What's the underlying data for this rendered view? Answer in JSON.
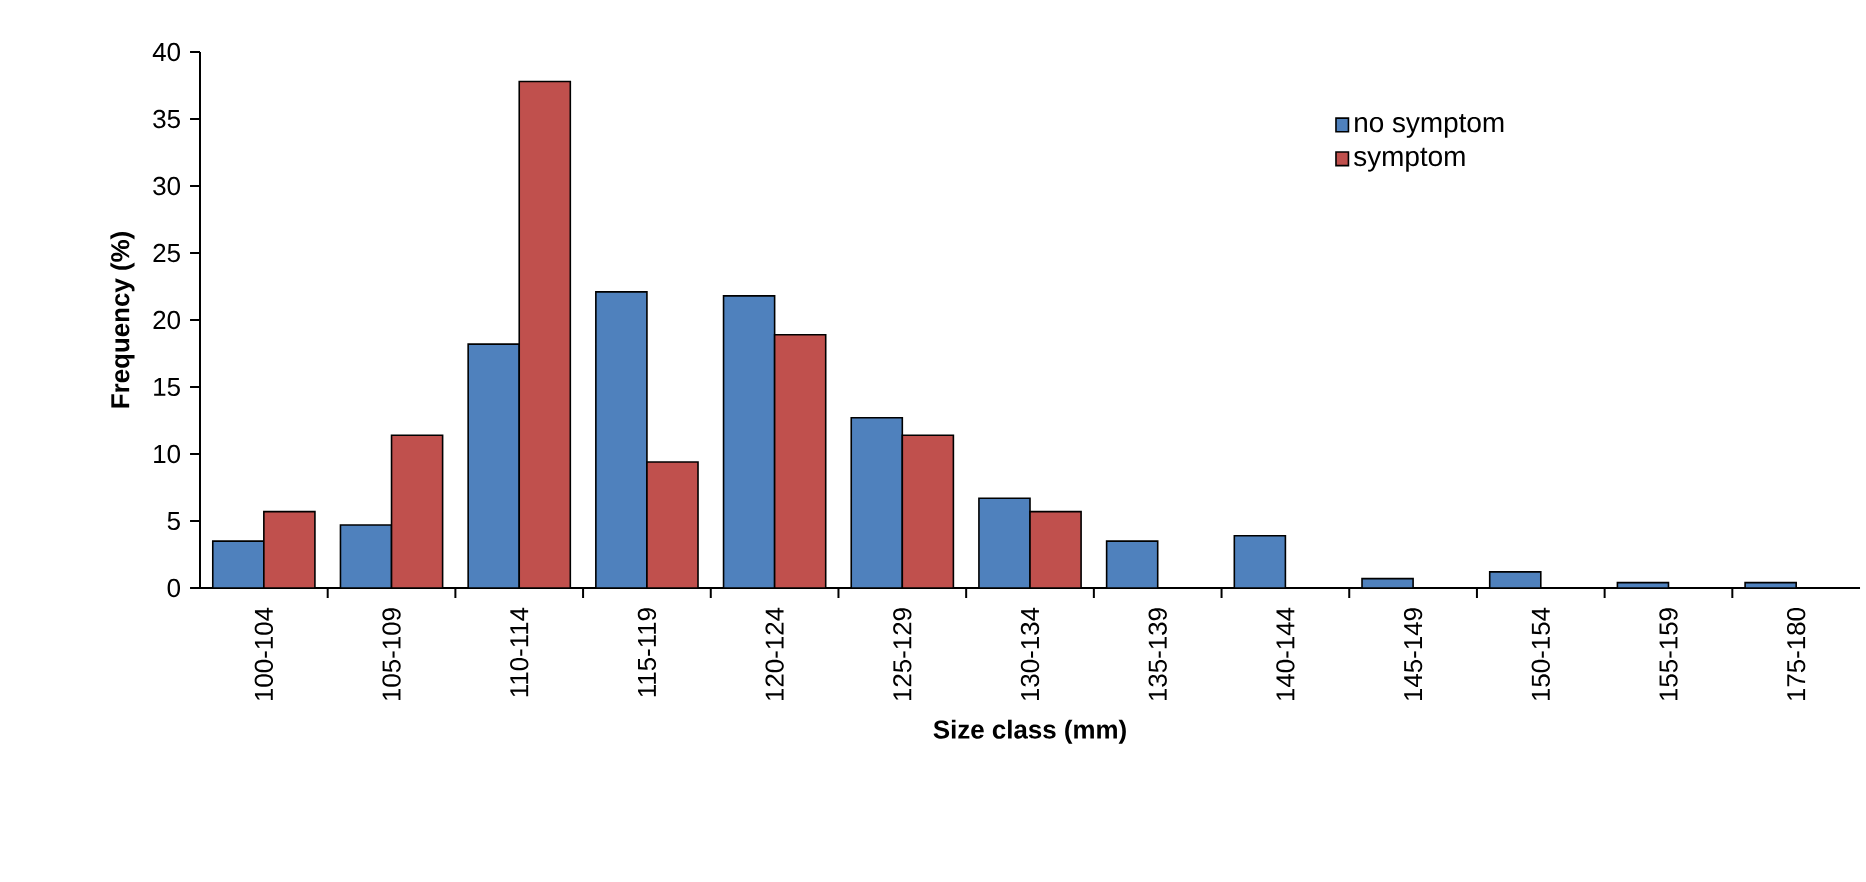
{
  "chart_data": {
    "type": "bar",
    "xlabel": "Size class (mm)",
    "ylabel": "Frequency (%)",
    "categories": [
      "100-104",
      "105-109",
      "110-114",
      "115-119",
      "120-124",
      "125-129",
      "130-134",
      "135-139",
      "140-144",
      "145-149",
      "150-154",
      "155-159",
      "175-180"
    ],
    "series": [
      {
        "name": "no symptom",
        "color": "#4f81bd",
        "values": [
          3.5,
          4.7,
          18.2,
          22.1,
          21.8,
          12.7,
          6.7,
          3.5,
          3.9,
          0.7,
          1.2,
          0.4,
          0.4
        ]
      },
      {
        "name": "symptom",
        "color": "#c0504d",
        "values": [
          5.7,
          11.4,
          37.8,
          9.4,
          18.9,
          11.4,
          5.7,
          0,
          0,
          0,
          0,
          0,
          0
        ]
      }
    ],
    "ylim": [
      0,
      40
    ],
    "yticks": [
      0,
      5,
      10,
      15,
      20,
      25,
      30,
      35,
      40
    ],
    "grid": false,
    "legend": "top right"
  }
}
